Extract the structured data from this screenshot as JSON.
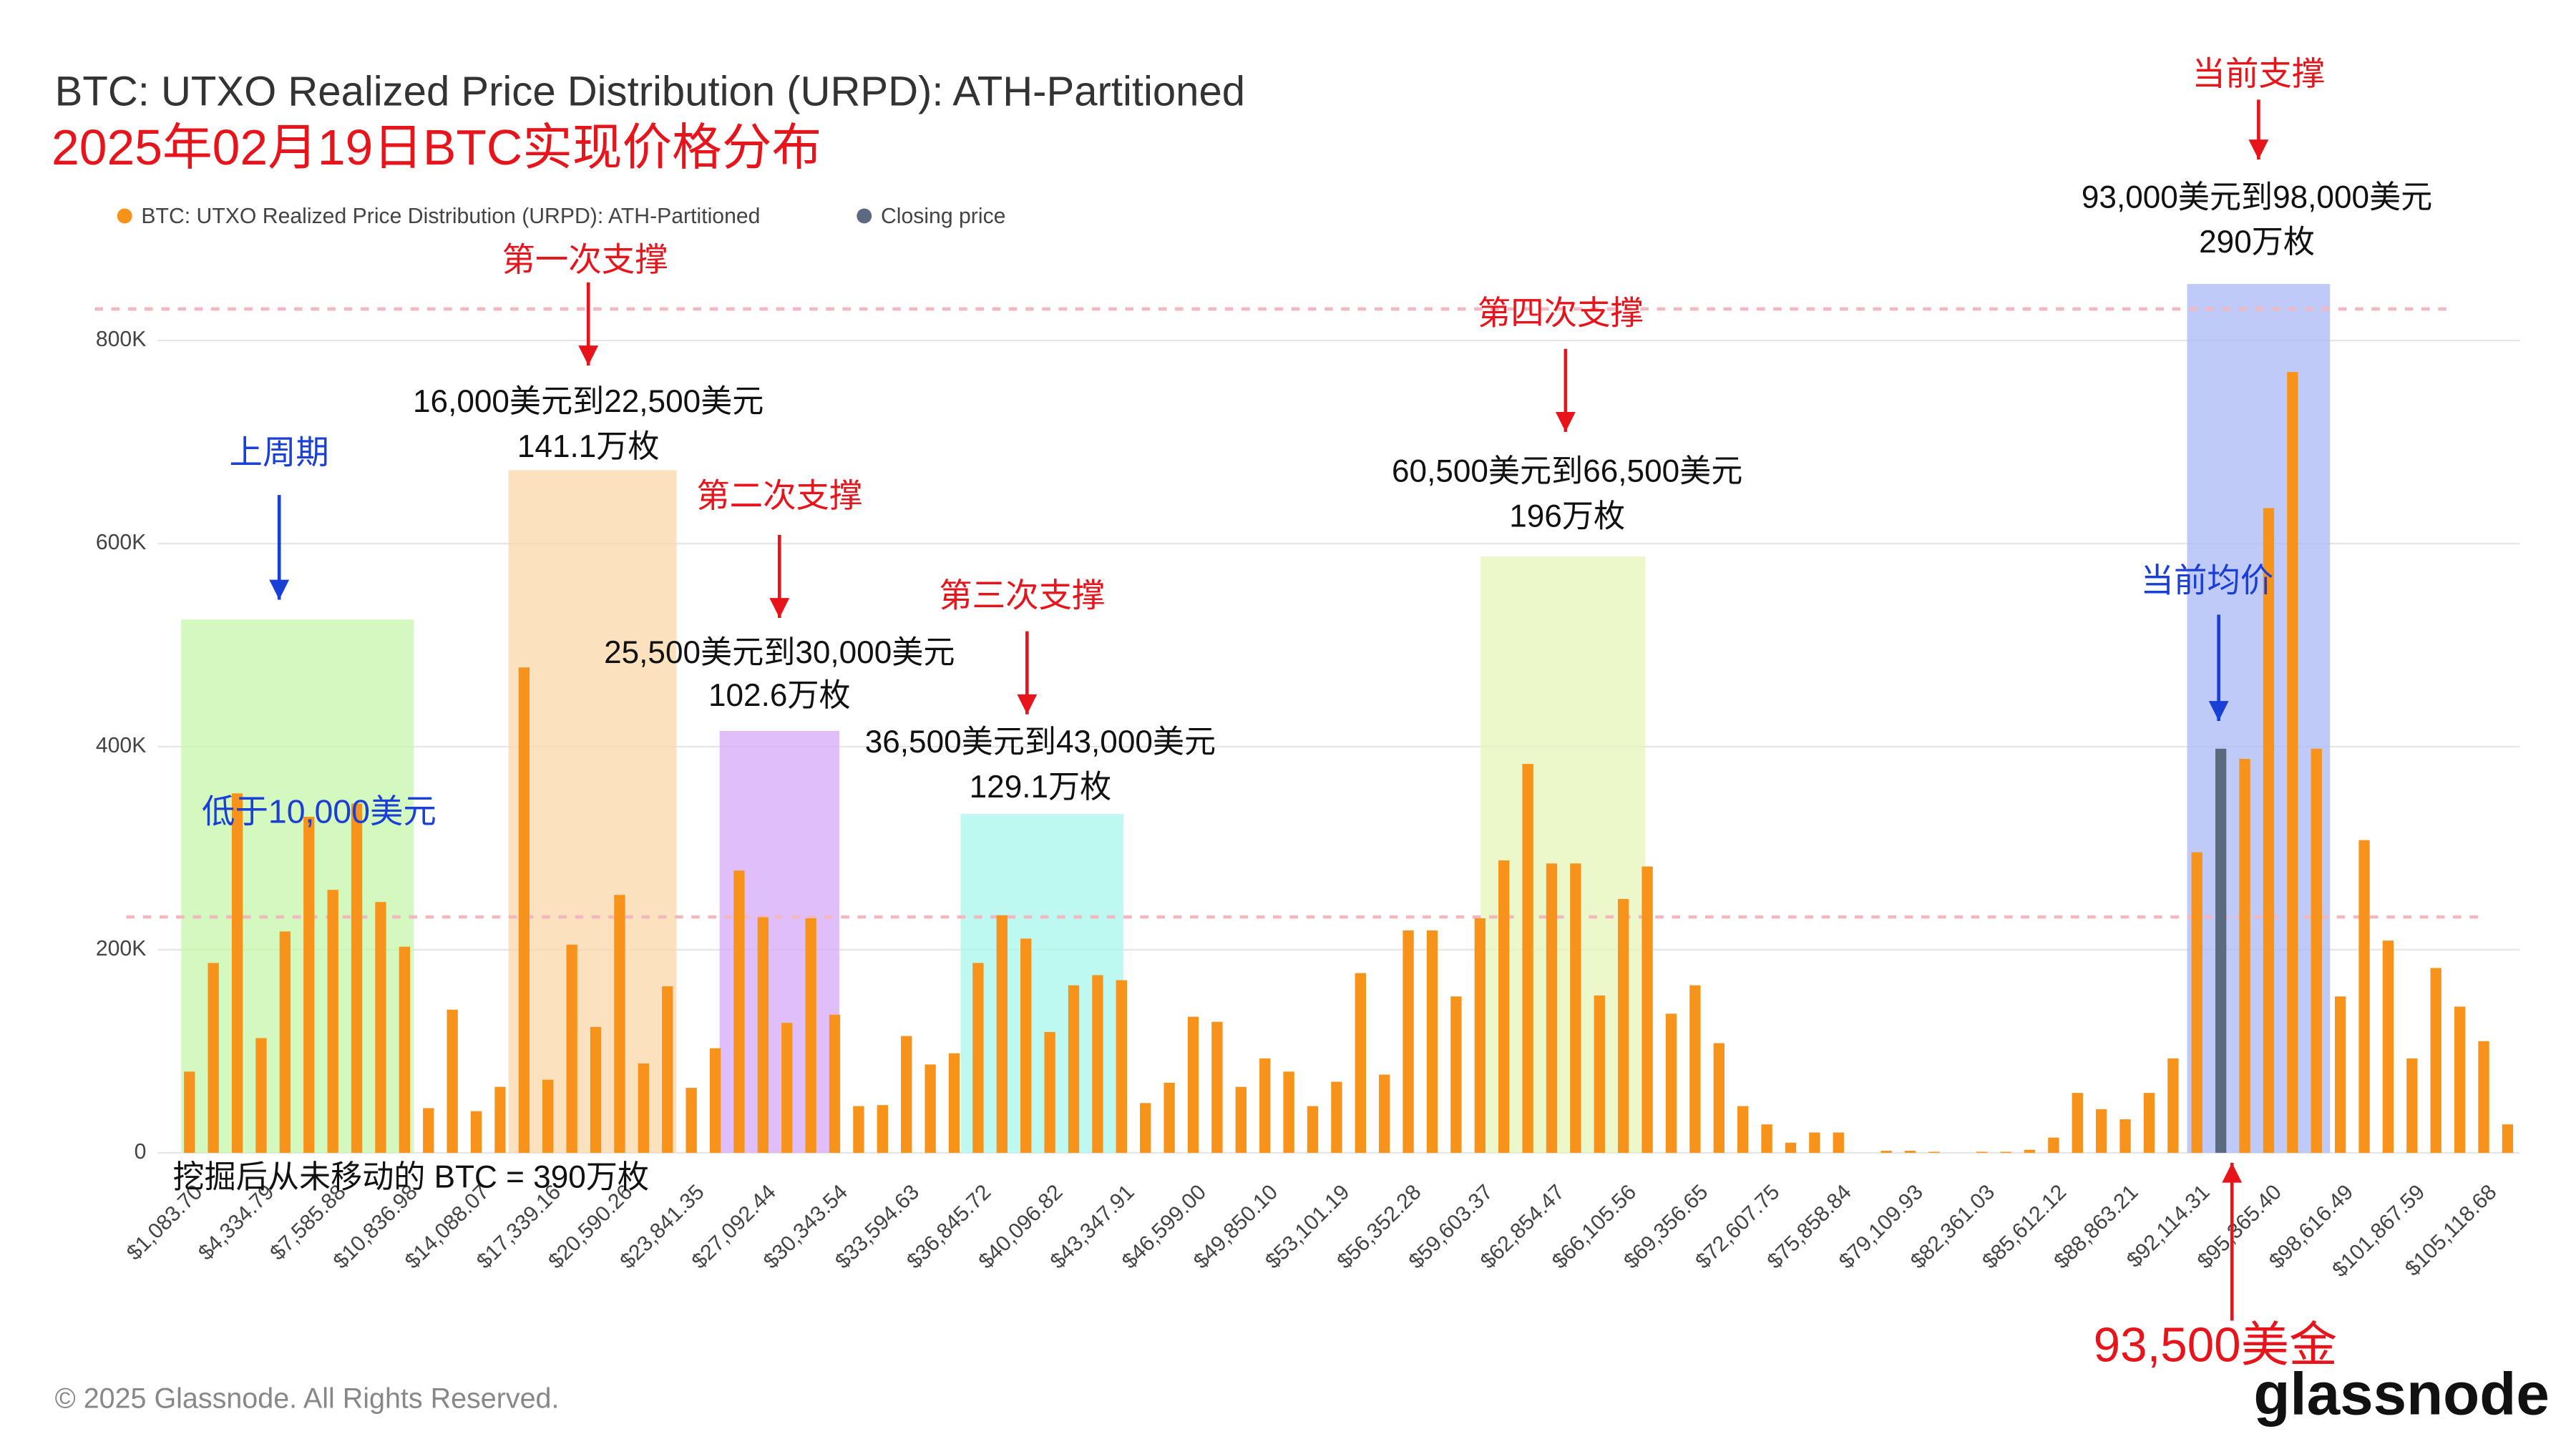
{
  "chart_data": {
    "type": "bar",
    "title": "BTC: UTXO Realized Price Distribution (URPD): ATH-Partitioned",
    "subtitle": "2025年02月19日BTC实现价格分布",
    "copyright": "© 2025 Glassnode. All Rights Reserved.",
    "logo": "glassnode",
    "categories": [
      "$1,083.70",
      null,
      null,
      "$4,334.79",
      null,
      null,
      "$7,585.88",
      null,
      null,
      "$10,836.98",
      null,
      null,
      "$14,088.07",
      null,
      null,
      "$17,339.16",
      null,
      null,
      "$20,590.26",
      null,
      null,
      "$23,841.35",
      null,
      null,
      "$27,092.44",
      null,
      null,
      "$30,343.54",
      null,
      null,
      "$33,594.63",
      null,
      null,
      "$36,845.72",
      null,
      null,
      "$40,096.82",
      null,
      null,
      "$43,347.91",
      null,
      null,
      "$46,599.00",
      null,
      null,
      "$49,850.10",
      null,
      null,
      "$53,101.19",
      null,
      null,
      "$56,352.28",
      null,
      null,
      "$59,603.37",
      null,
      null,
      "$62,854.47",
      null,
      null,
      "$66,105.56",
      null,
      null,
      "$69,356.65",
      null,
      null,
      "$72,607.75",
      null,
      null,
      "$75,858.84",
      null,
      null,
      "$79,109.93",
      null,
      null,
      "$82,361.03",
      null,
      null,
      "$85,612.12",
      null,
      null,
      "$88,863.21",
      null,
      null,
      "$92,114.31",
      null,
      null,
      "$95,365.40",
      null,
      null,
      "$98,616.49",
      null,
      null,
      "$101,867.59",
      null,
      null,
      "$105,118.68",
      null
    ],
    "series": [
      {
        "name": "BTC: UTXO Realized Price Distribution (URPD): ATH-Partitioned",
        "color": "#f7931a",
        "values": [
          80000,
          187000,
          354000,
          113000,
          218000,
          331000,
          259000,
          344000,
          247000,
          203000,
          44000,
          141000,
          41000,
          65000,
          478000,
          72000,
          205000,
          124000,
          254000,
          88000,
          164000,
          64000,
          103000,
          278000,
          232000,
          128000,
          231000,
          136000,
          46000,
          47000,
          115000,
          87000,
          98000,
          187000,
          234000,
          211000,
          119000,
          165000,
          175000,
          170000,
          49000,
          69000,
          134000,
          129000,
          65000,
          93000,
          80000,
          46000,
          70000,
          177000,
          77000,
          219000,
          219000,
          154000,
          231000,
          288000,
          383000,
          285000,
          285000,
          155000,
          250000,
          282000,
          137000,
          165000,
          108000,
          46000,
          28000,
          10000,
          20000,
          20000,
          0,
          2000,
          2000,
          1000,
          0,
          1000,
          1000,
          3000,
          15000,
          59000,
          43000,
          33000,
          59000,
          93000,
          296000,
          null,
          388000,
          635000,
          769000,
          398000,
          154000,
          308000,
          209000,
          93000,
          182000,
          144000,
          110000,
          28000
        ]
      },
      {
        "name": "Closing price",
        "color": "#5c6a80",
        "values": [
          null,
          null,
          null,
          null,
          null,
          null,
          null,
          null,
          null,
          null,
          null,
          null,
          null,
          null,
          null,
          null,
          null,
          null,
          null,
          null,
          null,
          null,
          null,
          null,
          null,
          null,
          null,
          null,
          null,
          null,
          null,
          null,
          null,
          null,
          null,
          null,
          null,
          null,
          null,
          null,
          null,
          null,
          null,
          null,
          null,
          null,
          null,
          null,
          null,
          null,
          null,
          null,
          null,
          null,
          null,
          null,
          null,
          null,
          null,
          null,
          null,
          null,
          null,
          null,
          null,
          null,
          null,
          null,
          null,
          null,
          null,
          null,
          null,
          null,
          null,
          null,
          null,
          null,
          null,
          null,
          null,
          null,
          null,
          null,
          null,
          398000,
          null,
          null,
          null,
          null,
          null,
          null,
          null,
          null,
          null,
          null,
          null,
          null
        ]
      }
    ],
    "ylim": [
      0,
      800000
    ],
    "yticks": [
      0,
      {
        "value": 200000,
        "label": "200K"
      },
      {
        "value": 400000,
        "label": "400K"
      },
      {
        "value": 600000,
        "label": "600K"
      },
      {
        "value": 800000,
        "label": "800K"
      }
    ],
    "grid": true,
    "legend": "top-left",
    "annotations": [
      "上周期",
      "低于10,000美元",
      "第一次支撑",
      "16,000美元到22,500美元",
      "141.1万枚",
      "第二次支撑",
      "25,500美元到30,000美元",
      "102.6万枚",
      "第三次支撑",
      "36,500美元到43,000美元",
      "129.1万枚",
      "第四次支撑",
      "60,500美元到66,500美元",
      "196万枚",
      "当前支撑",
      "93,000美元到98,000美元",
      "290万枚",
      "当前均价",
      "93,500美金",
      "挖掘后从未移动的 BTC = 390万枚"
    ]
  }
}
